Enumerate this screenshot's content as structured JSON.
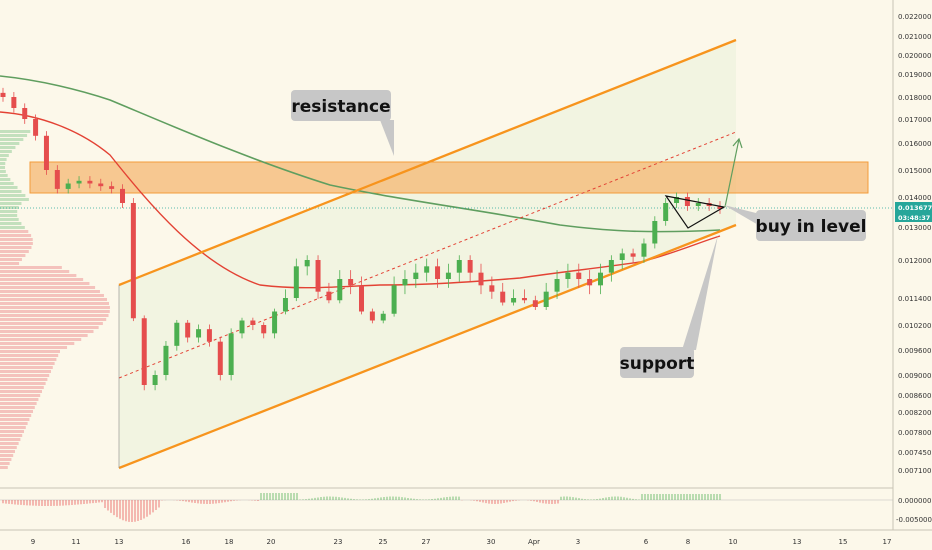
{
  "colors": {
    "background": "#fcf8ea",
    "channel": "#f7941d",
    "zone": "#f5b36b",
    "bull": "#4caf50",
    "bear": "#e54d4d",
    "ma_slow": "#5f9e5f",
    "ma_fast": "#e34234",
    "volume_profile_bull": "#b9dcb5",
    "volume_profile_bear": "#f2b9b4",
    "price_badge": "#26a69a",
    "label_box": "#c7c7c7"
  },
  "chart_data": {
    "type": "candlestick",
    "title": "",
    "y_range": [
      0.0068,
      0.0223
    ],
    "y_ticks": [
      "0.022000",
      "0.021000",
      "0.020000",
      "0.019000",
      "0.018000",
      "0.017000",
      "0.016000",
      "0.015000",
      "0.014000",
      "0.013000",
      "0.012000",
      "0.011400",
      "0.010200",
      "0.009600",
      "0.009000",
      "0.008600",
      "0.008200",
      "0.007800",
      "0.007450",
      "0.007100"
    ],
    "x_ticks": [
      "9",
      "11",
      "13",
      "16",
      "18",
      "20",
      "23",
      "25",
      "27",
      "30",
      "Apr",
      "3",
      "6",
      "8",
      "10",
      "13",
      "15",
      "17"
    ],
    "price_badge": "0.013677",
    "time_badge": "03:48:37",
    "oscillator_ticks": [
      "0.000000",
      "-0.005000"
    ],
    "annotations": {
      "resistance": "resistance",
      "buy_in_level": "buy in level",
      "support": "support"
    },
    "candles_sample_closes": [
      0.018,
      0.0175,
      0.017,
      0.0163,
      0.015,
      0.0143,
      0.0145,
      0.0146,
      0.0145,
      0.0144,
      0.0143,
      0.0138,
      0.0105,
      0.0088,
      0.009,
      0.0097,
      0.0103,
      0.0099,
      0.0101,
      0.0098,
      0.009,
      0.01,
      0.0104,
      0.0102,
      0.01,
      0.0108,
      0.0114,
      0.0119,
      0.012,
      0.0115,
      0.0113,
      0.0117,
      0.0116,
      0.0108,
      0.0104,
      0.0107,
      0.0116,
      0.0117,
      0.0118,
      0.0119,
      0.0117,
      0.0118,
      0.012,
      0.0118,
      0.0116,
      0.0115,
      0.0112,
      0.0114,
      0.0113,
      0.011,
      0.0115,
      0.0117,
      0.0118,
      0.0117,
      0.0116,
      0.0118,
      0.012,
      0.0122,
      0.0121,
      0.0125,
      0.0132,
      0.0138,
      0.014,
      0.0137,
      0.0138,
      0.0137,
      0.0136
    ]
  }
}
